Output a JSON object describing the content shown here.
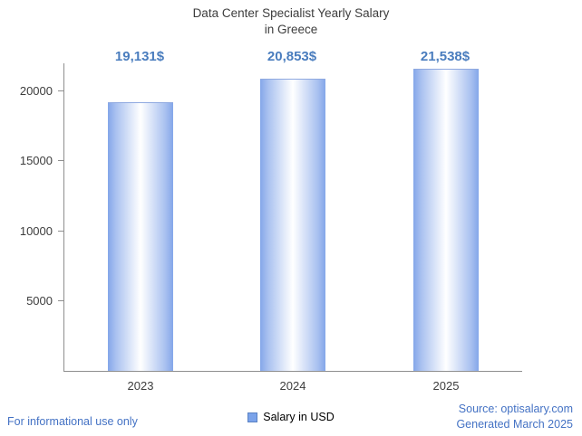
{
  "page": {
    "footer_left": "For informational use only",
    "source_line1": "Source: optisalary.com",
    "source_line2": "Generated March 2025"
  },
  "chart_data": {
    "type": "bar",
    "title": "Data Center Specialist Yearly Salary",
    "subtitle": "in Greece",
    "categories": [
      "2023",
      "2024",
      "2025"
    ],
    "values": [
      19131,
      20853,
      21538
    ],
    "value_labels": [
      "19,131$",
      "20,853$",
      "21,538$"
    ],
    "yticks": [
      5000,
      10000,
      15000,
      20000
    ],
    "ylim": [
      0,
      22000
    ],
    "xlabel": "",
    "ylabel": "",
    "grid": false,
    "legend": "Salary in USD",
    "legend_position": "bottom",
    "colors": {
      "bar_edge": "#84a6e9",
      "bar_center": "#ffffff",
      "bar_top_border": "#8fa9e0",
      "value_label_text": "#4a7dbe",
      "footer_link": "#4472c4",
      "axis": "#8f8f8f",
      "title_text": "#3d3d3d",
      "legend_swatch": "#7ba3ea"
    }
  }
}
